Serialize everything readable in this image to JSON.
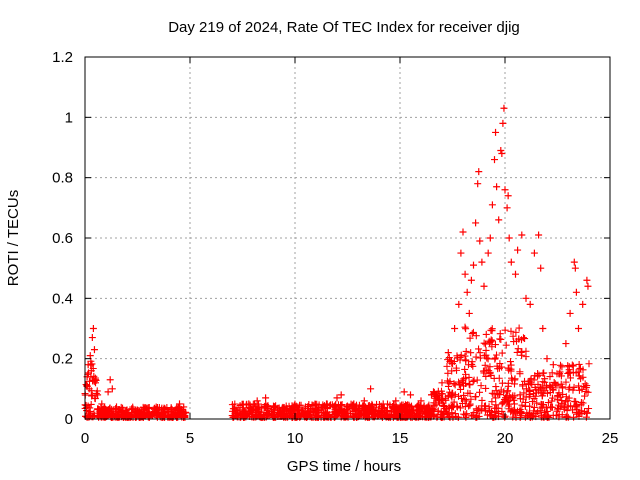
{
  "chart_data": {
    "type": "scatter",
    "title": "Day 219 of 2024, Rate Of TEC Index for receiver djig",
    "xlabel": "GPS time / hours",
    "ylabel": "ROTI / TECUs",
    "xlim": [
      0,
      25
    ],
    "ylim": [
      0,
      1.2
    ],
    "x_ticks": [
      "0",
      "5",
      "10",
      "15",
      "20",
      "25"
    ],
    "y_ticks": [
      "0",
      "0.2",
      "0.4",
      "0.6",
      "0.8",
      "1",
      "1.2"
    ],
    "grid": true,
    "marker": "plus",
    "series_color": "#ff0000",
    "series": [
      {
        "name": "ROTI",
        "points": [
          [
            0.1,
            0.14
          ],
          [
            0.15,
            0.18
          ],
          [
            0.2,
            0.1
          ],
          [
            0.25,
            0.21
          ],
          [
            0.3,
            0.16
          ],
          [
            0.35,
            0.27
          ],
          [
            0.4,
            0.3
          ],
          [
            0.45,
            0.23
          ],
          [
            0.5,
            0.12
          ],
          [
            0.6,
            0.08
          ],
          [
            0.8,
            0.05
          ],
          [
            1.1,
            0.09
          ],
          [
            1.2,
            0.13
          ],
          [
            1.3,
            0.1
          ],
          [
            1.5,
            0.04
          ],
          [
            2.0,
            0.03
          ],
          [
            2.5,
            0.03
          ],
          [
            3.0,
            0.035
          ],
          [
            3.5,
            0.03
          ],
          [
            4.0,
            0.025
          ],
          [
            4.5,
            0.05
          ],
          [
            4.7,
            0.04
          ],
          [
            7.2,
            0.03
          ],
          [
            7.8,
            0.05
          ],
          [
            8.2,
            0.06
          ],
          [
            8.6,
            0.07
          ],
          [
            9.0,
            0.04
          ],
          [
            9.5,
            0.03
          ],
          [
            10.0,
            0.03
          ],
          [
            10.5,
            0.04
          ],
          [
            11.0,
            0.03
          ],
          [
            11.5,
            0.05
          ],
          [
            12.0,
            0.07
          ],
          [
            12.2,
            0.08
          ],
          [
            12.8,
            0.05
          ],
          [
            13.3,
            0.06
          ],
          [
            13.6,
            0.1
          ],
          [
            14.2,
            0.05
          ],
          [
            14.8,
            0.06
          ],
          [
            15.2,
            0.09
          ],
          [
            15.5,
            0.08
          ],
          [
            16.0,
            0.06
          ],
          [
            16.5,
            0.08
          ],
          [
            17.0,
            0.12
          ],
          [
            17.3,
            0.22
          ],
          [
            17.6,
            0.3
          ],
          [
            17.8,
            0.38
          ],
          [
            17.9,
            0.55
          ],
          [
            18.0,
            0.62
          ],
          [
            18.1,
            0.48
          ],
          [
            18.2,
            0.42
          ],
          [
            18.3,
            0.35
          ],
          [
            18.4,
            0.46
          ],
          [
            18.5,
            0.51
          ],
          [
            18.6,
            0.65
          ],
          [
            18.7,
            0.78
          ],
          [
            18.75,
            0.82
          ],
          [
            18.8,
            0.59
          ],
          [
            18.9,
            0.52
          ],
          [
            19.0,
            0.44
          ],
          [
            19.2,
            0.55
          ],
          [
            19.3,
            0.6
          ],
          [
            19.4,
            0.71
          ],
          [
            19.5,
            0.86
          ],
          [
            19.55,
            0.95
          ],
          [
            19.6,
            0.77
          ],
          [
            19.7,
            0.66
          ],
          [
            19.8,
            0.89
          ],
          [
            19.85,
            0.88
          ],
          [
            19.9,
            0.98
          ],
          [
            19.95,
            1.03
          ],
          [
            20.0,
            0.76
          ],
          [
            20.1,
            0.7
          ],
          [
            20.15,
            0.74
          ],
          [
            20.2,
            0.6
          ],
          [
            20.3,
            0.52
          ],
          [
            20.5,
            0.48
          ],
          [
            20.6,
            0.56
          ],
          [
            20.8,
            0.61
          ],
          [
            21.0,
            0.4
          ],
          [
            21.2,
            0.38
          ],
          [
            21.4,
            0.55
          ],
          [
            21.6,
            0.61
          ],
          [
            21.7,
            0.5
          ],
          [
            21.8,
            0.3
          ],
          [
            22.0,
            0.2
          ],
          [
            22.3,
            0.18
          ],
          [
            22.6,
            0.15
          ],
          [
            22.9,
            0.25
          ],
          [
            23.1,
            0.35
          ],
          [
            23.3,
            0.52
          ],
          [
            23.35,
            0.5
          ],
          [
            23.4,
            0.42
          ],
          [
            23.5,
            0.3
          ],
          [
            23.7,
            0.38
          ],
          [
            23.9,
            0.46
          ],
          [
            23.95,
            0.44
          ]
        ]
      }
    ]
  }
}
